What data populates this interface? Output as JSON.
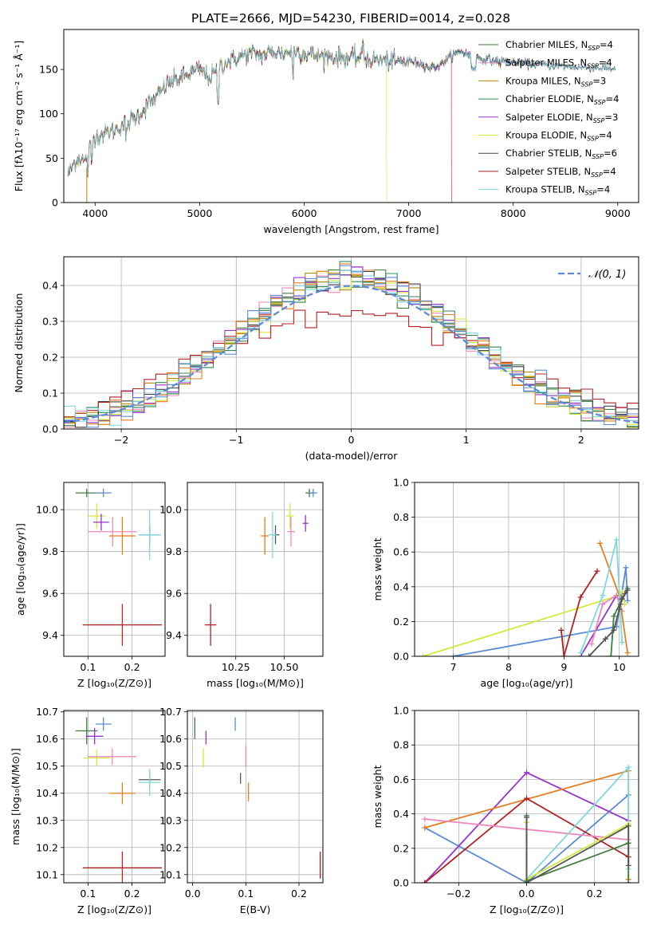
{
  "figure": {
    "title": "PLATE=2666, MJD=54230, FIBERID=0014, z=0.028"
  },
  "chart_data": [
    {
      "id": "spectrum",
      "type": "line",
      "xlabel": "wavelength [Angstrom, rest frame]",
      "ylabel": "Flux [fλ10⁻¹⁷ erg cm⁻² s⁻¹ Å⁻¹]",
      "xlim": [
        3700,
        9200
      ],
      "ylim": [
        0,
        195
      ],
      "xticks": [
        4000,
        5000,
        6000,
        7000,
        8000,
        9000
      ],
      "yticks": [
        0,
        50,
        100,
        150
      ],
      "grid": false,
      "legend_position": "top-right",
      "continuum_x": [
        3740,
        3800,
        3850,
        3900,
        3950,
        4000,
        4100,
        4200,
        4300,
        4400,
        4500,
        4600,
        4700,
        4800,
        4900,
        5000,
        5100,
        5200,
        5300,
        5400,
        5500,
        5600,
        5700,
        5800,
        5900,
        6000,
        6100,
        6200,
        6300,
        6400,
        6500,
        6600,
        6700,
        6800,
        6900,
        7000,
        7100,
        7200,
        7300,
        7400,
        7500,
        7600,
        7700,
        7800,
        7900,
        8000,
        8100,
        8200,
        8300,
        8400,
        8500,
        8600,
        8700,
        8800,
        8900,
        8980
      ],
      "continuum_y": [
        32,
        45,
        52,
        45,
        62,
        75,
        78,
        82,
        90,
        97,
        110,
        120,
        135,
        140,
        145,
        150,
        140,
        155,
        160,
        165,
        168,
        166,
        170,
        168,
        172,
        168,
        166,
        165,
        164,
        163,
        163,
        162,
        160,
        160,
        158,
        160,
        157,
        152,
        155,
        165,
        170,
        165,
        162,
        160,
        159,
        158,
        157,
        156,
        155,
        154,
        153,
        153,
        152,
        152,
        151,
        151
      ],
      "series": [
        {
          "name": "Chabrier MILES, N_SSP=4",
          "color": "#3f7f3f"
        },
        {
          "name": "Salpeter MILES, N_SSP=4",
          "color": "#ee88bb"
        },
        {
          "name": "Kroupa MILES, N_SSP=3",
          "color": "#b8860b"
        },
        {
          "name": "Chabrier ELODIE, N_SSP=4",
          "color": "#2e8b57"
        },
        {
          "name": "Salpeter ELODIE, N_SSP=3",
          "color": "#9932cc"
        },
        {
          "name": "Kroupa ELODIE, N_SSP=4",
          "color": "#d4e83a"
        },
        {
          "name": "Chabrier STELIB, N_SSP=6",
          "color": "#444444"
        },
        {
          "name": "Salpeter STELIB, N_SSP=4",
          "color": "#b22222"
        },
        {
          "name": "Kroupa STELIB, N_SSP=4",
          "color": "#7fd8e0"
        }
      ],
      "legend": [
        {
          "prefix": "Chabrier MILES, N",
          "sub": "SSP",
          "suffix": "=4"
        },
        {
          "prefix": "Salpeter MILES, N",
          "sub": "SSP",
          "suffix": "=4"
        },
        {
          "prefix": "Kroupa MILES, N",
          "sub": "SSP",
          "suffix": "=3"
        },
        {
          "prefix": "Chabrier ELODIE, N",
          "sub": "SSP",
          "suffix": "=4"
        },
        {
          "prefix": "Salpeter ELODIE, N",
          "sub": "SSP",
          "suffix": "=3"
        },
        {
          "prefix": "Kroupa ELODIE, N",
          "sub": "SSP",
          "suffix": "=4"
        },
        {
          "prefix": "Chabrier STELIB, N",
          "sub": "SSP",
          "suffix": "=6"
        },
        {
          "prefix": "Salpeter STELIB, N",
          "sub": "SSP",
          "suffix": "=4"
        },
        {
          "prefix": "Kroupa STELIB, N",
          "sub": "SSP",
          "suffix": "=4"
        }
      ],
      "dropouts": [
        {
          "series": "Kroupa MILES, N_SSP=3",
          "x": 3920
        },
        {
          "series": "Kroupa ELODIE, N_SSP=4",
          "x": 6790
        },
        {
          "series": "Salpeter STELIB, N_SSP=4",
          "x": 7410
        },
        {
          "series": "Chabrier MILES, N_SSP=4",
          "x": 7420
        }
      ]
    },
    {
      "id": "residuals",
      "type": "line",
      "xlabel": "(data-model)/error",
      "ylabel": "Normed distribution",
      "xlim": [
        -2.5,
        2.5
      ],
      "ylim": [
        0,
        0.48
      ],
      "xticks": [
        -2,
        -1,
        0,
        1,
        2
      ],
      "yticks": [
        0.0,
        0.1,
        0.2,
        0.3,
        0.4
      ],
      "grid": true,
      "legend_position": "top-right",
      "legend": [
        {
          "label": "𝒩(0, 1)",
          "color": "#5b8bd6",
          "style": "dashed"
        }
      ],
      "bin_width": 0.1,
      "gaussian": {
        "mu": 0,
        "sigma": 1
      }
    },
    {
      "id": "age-vs-Z",
      "type": "scatter",
      "xlabel": "Z [log₁₀(Z/Z⊙)]",
      "ylabel": "age  [log₁₀(age/yr)]",
      "xlim": [
        0.045,
        0.275
      ],
      "ylim": [
        9.3,
        10.13
      ],
      "xticks": [
        0.1,
        0.2
      ],
      "yticks": [
        9.4,
        9.6,
        9.8,
        10.0
      ],
      "grid": true,
      "points": [
        {
          "x": 0.097,
          "y": 10.08,
          "xerr": 0.025,
          "yerr": 0.02,
          "color": "#3f7f3f"
        },
        {
          "x": 0.135,
          "y": 10.08,
          "xerr": 0.018,
          "yerr": 0.02,
          "color": "#5b8bd6"
        },
        {
          "x": 0.12,
          "y": 9.97,
          "xerr": 0.02,
          "yerr": 0.06,
          "color": "#d4e83a"
        },
        {
          "x": 0.13,
          "y": 9.94,
          "xerr": 0.018,
          "yerr": 0.04,
          "color": "#9932cc"
        },
        {
          "x": 0.156,
          "y": 9.895,
          "xerr": 0.055,
          "yerr": 0.07,
          "color": "#ee88bb"
        },
        {
          "x": 0.178,
          "y": 9.875,
          "xerr": 0.03,
          "yerr": 0.09,
          "color": "#e67e22"
        },
        {
          "x": 0.24,
          "y": 9.88,
          "xerr": 0.025,
          "yerr": 0.045,
          "color": "#555555"
        },
        {
          "x": 0.24,
          "y": 9.88,
          "xerr": 0.025,
          "yerr": 0.12,
          "color": "#7fd8e0"
        },
        {
          "x": 0.178,
          "y": 9.45,
          "xerr": 0.09,
          "yerr": 0.1,
          "color": "#b22222"
        }
      ]
    },
    {
      "id": "age-vs-mass",
      "type": "scatter",
      "xlabel": "mass [log₁₀(M/M⊙)]",
      "ylabel": "",
      "xlim": [
        10.0,
        10.7
      ],
      "ylim": [
        9.3,
        10.13
      ],
      "xticks": [
        10.25,
        10.5
      ],
      "yticks": [
        9.4,
        9.6,
        9.8,
        10.0
      ],
      "grid": true,
      "points": [
        {
          "x": 10.63,
          "y": 10.08,
          "xerr": 0.02,
          "yerr": 0.02,
          "color": "#3f7f3f"
        },
        {
          "x": 10.65,
          "y": 10.08,
          "xerr": 0.02,
          "yerr": 0.02,
          "color": "#5b8bd6"
        },
        {
          "x": 10.53,
          "y": 9.97,
          "xerr": 0.02,
          "yerr": 0.06,
          "color": "#d4e83a"
        },
        {
          "x": 10.61,
          "y": 9.935,
          "xerr": 0.015,
          "yerr": 0.04,
          "color": "#9932cc"
        },
        {
          "x": 10.535,
          "y": 9.895,
          "xerr": 0.02,
          "yerr": 0.07,
          "color": "#ee88bb"
        },
        {
          "x": 10.4,
          "y": 9.875,
          "xerr": 0.02,
          "yerr": 0.09,
          "color": "#e67e22"
        },
        {
          "x": 10.455,
          "y": 9.88,
          "xerr": 0.02,
          "yerr": 0.045,
          "color": "#555555"
        },
        {
          "x": 10.44,
          "y": 9.88,
          "xerr": 0.02,
          "yerr": 0.11,
          "color": "#7fd8e0"
        },
        {
          "x": 10.12,
          "y": 9.45,
          "xerr": 0.03,
          "yerr": 0.1,
          "color": "#b22222"
        }
      ]
    },
    {
      "id": "weight-vs-age",
      "type": "line",
      "xlabel": "age  [log₁₀(age/yr)]",
      "ylabel": "mass weight",
      "xlim": [
        6.3,
        10.35
      ],
      "ylim": [
        0,
        1.0
      ],
      "xticks": [
        7,
        8,
        9,
        10
      ],
      "yticks": [
        0.0,
        0.2,
        0.4,
        0.6,
        0.8,
        1.0
      ],
      "grid": true,
      "series": [
        {
          "color": "#5b8bd6",
          "x": [
            7.0,
            9.95,
            10.12,
            10.15
          ],
          "y": [
            0.0,
            0.17,
            0.51,
            0.32
          ]
        },
        {
          "color": "#d4e83a",
          "x": [
            6.45,
            10.0,
            10.05,
            10.1
          ],
          "y": [
            0.0,
            0.35,
            0.37,
            0.3
          ]
        },
        {
          "color": "#b22222",
          "x": [
            8.95,
            9.0,
            9.3,
            9.6
          ],
          "y": [
            0.15,
            0.0,
            0.34,
            0.49
          ]
        },
        {
          "color": "#9932cc",
          "x": [
            9.3,
            9.95,
            10.02,
            10.1
          ],
          "y": [
            0.0,
            0.35,
            0.3,
            0.36
          ]
        },
        {
          "color": "#ee88bb",
          "x": [
            9.5,
            9.7,
            9.95,
            10.05
          ],
          "y": [
            0.07,
            0.3,
            0.35,
            0.26
          ]
        },
        {
          "color": "#e67e22",
          "x": [
            9.65,
            10.0,
            10.15
          ],
          "y": [
            0.65,
            0.35,
            0.02
          ]
        },
        {
          "color": "#7fd8e0",
          "x": [
            9.3,
            9.7,
            9.95,
            10.05
          ],
          "y": [
            0.02,
            0.35,
            0.67,
            0.08
          ]
        },
        {
          "color": "#3f7f3f",
          "x": [
            9.85,
            9.9,
            10.05,
            10.15
          ],
          "y": [
            0.0,
            0.23,
            0.33,
            0.39
          ]
        },
        {
          "color": "#555555",
          "x": [
            9.45,
            9.75,
            9.9,
            10.0,
            10.05,
            10.15
          ],
          "y": [
            0.0,
            0.1,
            0.15,
            0.27,
            0.33,
            0.38
          ]
        }
      ]
    },
    {
      "id": "mass-vs-Z",
      "type": "scatter",
      "xlabel": "Z [log₁₀(Z/Z⊙)]",
      "ylabel": "mass [log₁₀(M/M⊙)]",
      "xlim": [
        0.045,
        0.275
      ],
      "ylim": [
        10.07,
        10.705
      ],
      "xticks": [
        0.1,
        0.2
      ],
      "yticks": [
        10.1,
        10.2,
        10.3,
        10.4,
        10.5,
        10.6,
        10.7
      ],
      "grid": true,
      "points": [
        {
          "x": 0.097,
          "y": 10.63,
          "xerr": 0.025,
          "yerr": 0.05,
          "color": "#3f7f3f"
        },
        {
          "x": 0.135,
          "y": 10.655,
          "xerr": 0.018,
          "yerr": 0.025,
          "color": "#5b8bd6"
        },
        {
          "x": 0.115,
          "y": 10.61,
          "xerr": 0.02,
          "yerr": 0.03,
          "color": "#9932cc"
        },
        {
          "x": 0.12,
          "y": 10.53,
          "xerr": 0.03,
          "yerr": 0.03,
          "color": "#d4e83a"
        },
        {
          "x": 0.155,
          "y": 10.535,
          "xerr": 0.055,
          "yerr": 0.03,
          "color": "#ee88bb"
        },
        {
          "x": 0.178,
          "y": 10.4,
          "xerr": 0.03,
          "yerr": 0.04,
          "color": "#e67e22"
        },
        {
          "x": 0.24,
          "y": 10.45,
          "xerr": 0.025,
          "yerr": 0.025,
          "color": "#555555"
        },
        {
          "x": 0.24,
          "y": 10.44,
          "xerr": 0.025,
          "yerr": 0.05,
          "color": "#7fd8e0"
        },
        {
          "x": 0.178,
          "y": 10.125,
          "xerr": 0.09,
          "yerr": 0.06,
          "color": "#b22222"
        }
      ]
    },
    {
      "id": "mass-vs-ebv",
      "type": "scatter",
      "xlabel": "E(B-V)",
      "ylabel": "",
      "xlim": [
        -0.01,
        0.245
      ],
      "ylim": [
        10.07,
        10.705
      ],
      "xticks": [
        0.0,
        0.1,
        0.2
      ],
      "yticks": [
        10.1,
        10.2,
        10.3,
        10.4,
        10.5,
        10.6,
        10.7
      ],
      "grid": true,
      "points": [
        {
          "x": 0.004,
          "y": 10.64,
          "xerr": 0.0,
          "yerr": 0.04,
          "color": "#3f7f3f"
        },
        {
          "x": 0.08,
          "y": 10.655,
          "xerr": 0.0,
          "yerr": 0.025,
          "color": "#5b8bd6"
        },
        {
          "x": 0.025,
          "y": 10.605,
          "xerr": 0.0,
          "yerr": 0.025,
          "color": "#9932cc"
        },
        {
          "x": 0.02,
          "y": 10.53,
          "xerr": 0.0,
          "yerr": 0.035,
          "color": "#d4e83a"
        },
        {
          "x": 0.1,
          "y": 10.535,
          "xerr": 0.0,
          "yerr": 0.04,
          "color": "#ee88bb"
        },
        {
          "x": 0.105,
          "y": 10.405,
          "xerr": 0.0,
          "yerr": 0.035,
          "color": "#e67e22"
        },
        {
          "x": 0.09,
          "y": 10.455,
          "xerr": 0.0,
          "yerr": 0.02,
          "color": "#555555"
        },
        {
          "x": 0.24,
          "y": 10.135,
          "xerr": 0.0,
          "yerr": 0.05,
          "color": "#b22222"
        }
      ]
    },
    {
      "id": "weight-vs-Z",
      "type": "line",
      "xlabel": "Z [log₁₀(Z/Z⊙)]",
      "ylabel": "mass weight",
      "xlim": [
        -0.33,
        0.33
      ],
      "ylim": [
        0,
        1.0
      ],
      "xticks": [
        -0.2,
        0.0,
        0.2
      ],
      "yticks": [
        0.0,
        0.2,
        0.4,
        0.6,
        0.8,
        1.0
      ],
      "grid": true,
      "series": [
        {
          "color": "#5b8bd6",
          "x": [
            -0.3,
            0.0,
            0.3
          ],
          "y": [
            0.32,
            0.0,
            0.51
          ]
        },
        {
          "color": "#9932cc",
          "x": [
            -0.3,
            0.0,
            0.3
          ],
          "y": [
            0.0,
            0.64,
            0.36
          ]
        },
        {
          "color": "#e67e22",
          "x": [
            -0.3,
            0.3,
            0.3
          ],
          "y": [
            0.32,
            0.65,
            0.02
          ]
        },
        {
          "color": "#b22222",
          "x": [
            -0.3,
            0.0,
            0.3
          ],
          "y": [
            0.0,
            0.49,
            0.15
          ]
        },
        {
          "color": "#ee88bb",
          "x": [
            -0.3,
            0.3
          ],
          "y": [
            0.37,
            0.25
          ]
        },
        {
          "color": "#7fd8e0",
          "x": [
            0.0,
            0.3,
            0.3
          ],
          "y": [
            0.02,
            0.67,
            0.08
          ]
        },
        {
          "color": "#d4e83a",
          "x": [
            0.0,
            0.0,
            0.3
          ],
          "y": [
            0.35,
            0.02,
            0.34
          ]
        },
        {
          "color": "#3f7f3f",
          "x": [
            0.0,
            0.0,
            0.3,
            0.3
          ],
          "y": [
            0.39,
            0.01,
            0.23,
            0.0
          ]
        },
        {
          "color": "#555555",
          "x": [
            0.0,
            0.0,
            0.3,
            0.3
          ],
          "y": [
            0.38,
            0.0,
            0.33,
            0.1
          ]
        }
      ]
    }
  ]
}
